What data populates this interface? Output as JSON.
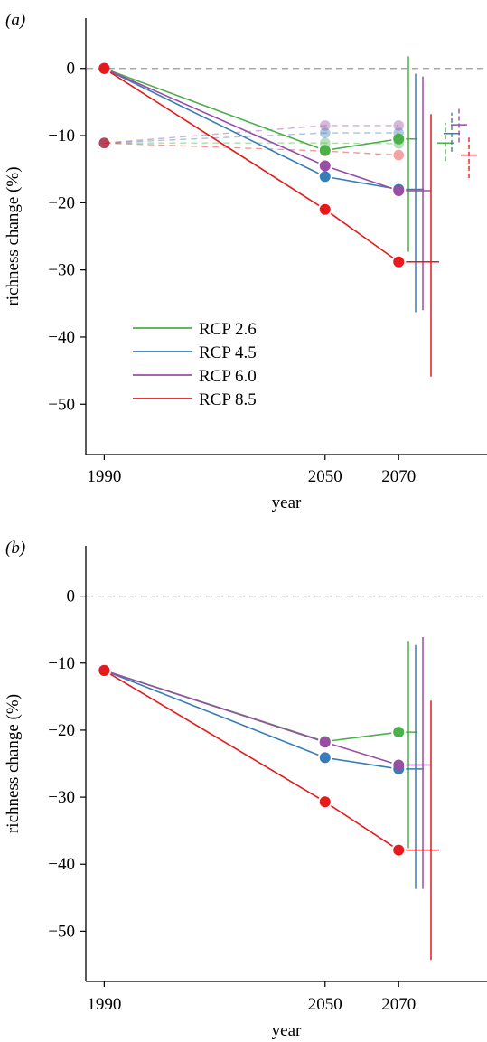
{
  "chart_data": [
    {
      "type": "line",
      "panel_label": "(a)",
      "xlabel": "year",
      "ylabel": "richness change (%)",
      "xticks": [
        1990,
        2050,
        2070
      ],
      "yticks": [
        0,
        -10,
        -20,
        -30,
        -40,
        -50
      ],
      "xlim": [
        1985,
        2094
      ],
      "ylim": [
        -57.5,
        7.5
      ],
      "reference_line": 0,
      "legend": {
        "position": "bottom-left",
        "entries": [
          "RCP 2.6",
          "RCP 4.5",
          "RCP 6.0",
          "RCP 8.5"
        ]
      },
      "series": [
        {
          "name": "RCP 2.6",
          "color": "#4daf4a",
          "x": [
            1990,
            2050,
            2070
          ],
          "values": [
            0,
            -12.2,
            -10.5
          ],
          "ci_2070": [
            -27.3,
            1.8
          ],
          "faded": {
            "x": [
              1990,
              2050,
              2070
            ],
            "values": [
              -11.1,
              -11.1,
              -11.2
            ]
          },
          "side_mean": -11.1,
          "side_ci": [
            -13.8,
            -8.1
          ]
        },
        {
          "name": "RCP 4.5",
          "color": "#377eb8",
          "x": [
            1990,
            2050,
            2070
          ],
          "values": [
            0,
            -16.1,
            -18.0
          ],
          "ci_2070": [
            -36.3,
            -0.8
          ],
          "faded": {
            "x": [
              1990,
              2050,
              2070
            ],
            "values": [
              -11.1,
              -9.6,
              -9.6
            ]
          },
          "side_mean": -9.7,
          "side_ci": [
            -12.4,
            -6.6
          ]
        },
        {
          "name": "RCP 6.0",
          "color": "#984ea3",
          "x": [
            1990,
            2050,
            2070
          ],
          "values": [
            0,
            -14.5,
            -18.2
          ],
          "ci_2070": [
            -36.0,
            -1.2
          ],
          "faded": {
            "x": [
              1990,
              2050,
              2070
            ],
            "values": [
              -11.1,
              -8.5,
              -8.5
            ]
          },
          "side_mean": -8.4,
          "side_ci": [
            -11.0,
            -5.7
          ]
        },
        {
          "name": "RCP 8.5",
          "color": "#e41a1c",
          "x": [
            1990,
            2050,
            2070
          ],
          "values": [
            0,
            -21.0,
            -28.8
          ],
          "ci_2070": [
            -45.9,
            -6.8
          ],
          "faded": {
            "x": [
              1990,
              2050,
              2070
            ],
            "values": [
              -11.1,
              -12.3,
              -12.9
            ]
          },
          "side_mean": -12.9,
          "side_ci": [
            -16.3,
            -10.3
          ]
        }
      ]
    },
    {
      "type": "line",
      "panel_label": "(b)",
      "xlabel": "year",
      "ylabel": "richness change (%)",
      "xticks": [
        1990,
        2050,
        2070
      ],
      "yticks": [
        0,
        -10,
        -20,
        -30,
        -40,
        -50
      ],
      "xlim": [
        1985,
        2094
      ],
      "ylim": [
        -57.5,
        7.5
      ],
      "reference_line": 0,
      "series": [
        {
          "name": "RCP 2.6",
          "color": "#4daf4a",
          "x": [
            1990,
            2050,
            2070
          ],
          "values": [
            -11.1,
            -21.7,
            -20.3
          ],
          "ci_2070": [
            -37.6,
            -6.7
          ]
        },
        {
          "name": "RCP 4.5",
          "color": "#377eb8",
          "x": [
            1990,
            2050,
            2070
          ],
          "values": [
            -11.1,
            -24.1,
            -25.8
          ],
          "ci_2070": [
            -43.7,
            -7.3
          ]
        },
        {
          "name": "RCP 6.0",
          "color": "#984ea3",
          "x": [
            1990,
            2050,
            2070
          ],
          "values": [
            -11.1,
            -21.8,
            -25.2
          ],
          "ci_2070": [
            -43.7,
            -6.1
          ]
        },
        {
          "name": "RCP 8.5",
          "color": "#e41a1c",
          "x": [
            1990,
            2050,
            2070
          ],
          "values": [
            -11.1,
            -30.7,
            -37.9
          ],
          "ci_2070": [
            -54.3,
            -15.6
          ]
        }
      ]
    }
  ]
}
